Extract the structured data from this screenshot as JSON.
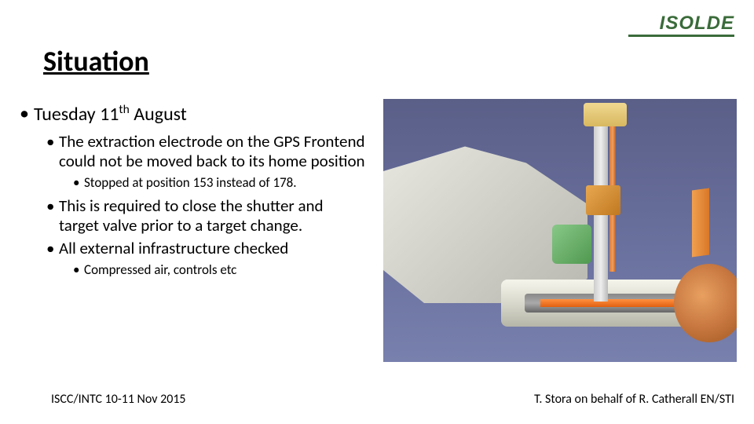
{
  "logo": {
    "text": "ISOLDE"
  },
  "title": "Situation",
  "bullets": {
    "l1": "Tuesday 11",
    "l1_sup": "th",
    "l1_after": " August",
    "l2a": "The extraction electrode on the GPS Frontend could not be moved back to its home position",
    "l3a": "Stopped at position 153 instead of 178.",
    "l2b": "This is required to close the shutter and target valve prior to a target change.",
    "l2c": "All external infrastructure checked",
    "l3b": "Compressed air, controls etc"
  },
  "footer": {
    "left": "ISCC/INTC 10-11 Nov 2015",
    "right": "T. Stora on behalf of R. Catherall EN/STI"
  },
  "figure": {
    "description": "3D CAD cutaway of GPS frontend extraction electrode mechanism",
    "background_color": "#6b729f",
    "body_color": "#d0d0c8",
    "copper_color": "#c87840",
    "orange_color": "#e07830",
    "green_color": "#509850"
  }
}
